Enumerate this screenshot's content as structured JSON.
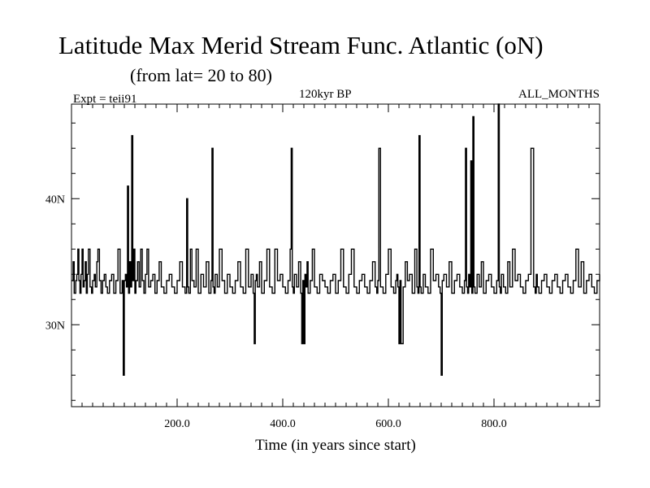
{
  "chart_data": {
    "type": "line",
    "title": "Latitude Max Merid Stream Func. Atlantic (oN)",
    "subtitle": "(from lat= 20 to 80)",
    "left_note": "Expt = teii91",
    "center_note": "120kyr BP",
    "right_note": "ALL_MONTHS",
    "xlabel": "Time (in years since start)",
    "ylabel": "",
    "xlim": [
      0,
      1000
    ],
    "ylim": [
      23.5,
      47.5
    ],
    "x_ticks_major": [
      200,
      400,
      600,
      800
    ],
    "x_tick_labels": [
      "200.0",
      "400.0",
      "600.0",
      "800.0"
    ],
    "y_ticks_major": [
      30,
      40
    ],
    "y_tick_labels": [
      "30N",
      "40N"
    ],
    "grid": false,
    "series": [
      {
        "x": [
          0,
          3,
          5,
          8,
          10,
          12,
          14,
          16,
          18,
          20,
          22,
          24,
          26,
          28,
          30,
          32,
          35,
          38,
          40,
          43,
          45,
          48,
          50,
          53,
          56,
          59,
          62,
          65,
          68,
          72,
          76,
          80,
          84,
          88,
          92,
          96,
          98,
          100,
          102,
          104,
          106,
          108,
          110,
          112,
          114,
          116,
          118,
          120,
          122,
          125,
          128,
          131,
          134,
          137,
          140,
          143,
          146,
          150,
          154,
          158,
          162,
          166,
          170,
          175,
          180,
          185,
          190,
          195,
          200,
          205,
          210,
          215,
          218,
          220,
          222,
          225,
          228,
          232,
          236,
          240,
          245,
          250,
          255,
          260,
          264,
          266,
          268,
          270,
          272,
          276,
          280,
          285,
          290,
          295,
          300,
          305,
          310,
          315,
          320,
          325,
          330,
          335,
          340,
          344,
          346,
          348,
          350,
          352,
          356,
          360,
          365,
          370,
          375,
          380,
          385,
          390,
          395,
          400,
          405,
          410,
          414,
          416,
          418,
          420,
          422,
          426,
          430,
          434,
          436,
          438,
          440,
          442,
          444,
          446,
          448,
          452,
          456,
          460,
          465,
          470,
          475,
          480,
          485,
          490,
          495,
          500,
          505,
          510,
          515,
          520,
          525,
          530,
          535,
          540,
          545,
          550,
          555,
          560,
          565,
          570,
          575,
          578,
          580,
          582,
          585,
          590,
          595,
          600,
          605,
          610,
          614,
          616,
          618,
          620,
          622,
          624,
          628,
          632,
          636,
          640,
          645,
          650,
          654,
          656,
          658,
          660,
          662,
          666,
          670,
          675,
          680,
          685,
          690,
          695,
          698,
          700,
          702,
          705,
          710,
          715,
          720,
          725,
          730,
          735,
          740,
          744,
          746,
          748,
          750,
          752,
          754,
          756,
          758,
          760,
          762,
          764,
          768,
          772,
          776,
          780,
          785,
          790,
          795,
          800,
          805,
          808,
          810,
          812,
          814,
          818,
          822,
          826,
          830,
          835,
          840,
          845,
          850,
          855,
          860,
          865,
          870,
          875,
          878,
          880,
          882,
          885,
          890,
          895,
          900,
          905,
          910,
          915,
          920,
          925,
          930,
          935,
          940,
          945,
          950,
          955,
          960,
          965,
          970,
          975,
          980,
          985,
          990,
          995,
          1000
        ],
        "y": [
          33.5,
          35,
          32.5,
          33.5,
          34,
          36,
          33.5,
          32.5,
          34,
          36,
          33,
          33.5,
          35,
          32.5,
          34,
          36,
          33,
          32.5,
          33.5,
          34,
          33,
          35,
          36,
          33.5,
          32.5,
          33.5,
          34,
          33,
          32.5,
          33.5,
          34,
          32.5,
          33.5,
          36,
          32.5,
          33.5,
          26,
          33.5,
          34,
          33,
          41,
          32.5,
          35,
          33,
          45,
          33.5,
          36,
          32.5,
          33.5,
          35,
          33,
          36,
          33.5,
          32.5,
          34,
          36,
          33,
          33.5,
          34,
          32.5,
          33.5,
          35,
          33,
          32.5,
          33.5,
          34,
          33,
          32.5,
          33.5,
          35,
          33,
          32.5,
          40,
          33,
          32.5,
          36,
          33.5,
          33,
          36,
          32.5,
          34,
          33,
          35,
          32.5,
          33.5,
          44,
          33,
          32.5,
          34,
          33,
          36,
          33.5,
          32.5,
          34,
          33,
          32.5,
          33.5,
          35,
          33,
          32.5,
          36,
          33,
          34,
          32.5,
          28.5,
          33.5,
          34,
          33,
          35,
          32.5,
          33.5,
          36,
          33,
          32.5,
          36,
          33.5,
          34,
          33,
          32.5,
          33.5,
          36,
          44,
          33,
          32.5,
          34,
          33,
          35,
          32.5,
          28.5,
          33.5,
          28.5,
          34,
          33,
          35,
          32.5,
          33.5,
          36,
          33,
          32.5,
          34,
          33.5,
          33,
          32.5,
          33.5,
          34,
          32.5,
          33.5,
          36,
          33,
          32.5,
          34,
          36,
          33,
          32.5,
          33.5,
          34,
          33,
          32.5,
          33.5,
          35,
          33,
          32.5,
          33.5,
          44,
          33,
          32.5,
          34,
          36,
          33,
          32.5,
          33.5,
          34,
          33,
          28.5,
          33.5,
          28.5,
          33,
          35,
          33.5,
          34,
          32.5,
          36,
          33,
          32.5,
          45,
          33,
          32.5,
          34,
          33,
          32.5,
          36,
          33.5,
          34,
          33,
          32.5,
          26,
          33.5,
          34,
          33,
          35,
          32.5,
          33.5,
          34,
          33,
          32.5,
          33.5,
          44,
          33,
          32.5,
          34,
          33,
          43,
          32.5,
          46.5,
          33,
          32.5,
          34,
          33,
          35,
          32.5,
          33.5,
          34,
          33,
          32.5,
          33.5,
          47.5,
          33,
          32.5,
          34,
          33,
          32.5,
          35,
          33,
          36,
          33.5,
          34,
          33,
          32.5,
          33.5,
          34,
          44,
          33,
          32.5,
          34,
          33,
          32.5,
          33.5,
          34,
          33,
          32.5,
          33.5,
          34,
          33,
          32.5,
          33.5,
          34,
          33,
          32.5,
          33.5,
          36,
          33,
          35,
          32.5,
          33.5,
          34,
          33,
          32.5,
          33.5,
          34
        ]
      }
    ]
  },
  "colors": {
    "background": "#ffffff",
    "line": "#000000"
  }
}
